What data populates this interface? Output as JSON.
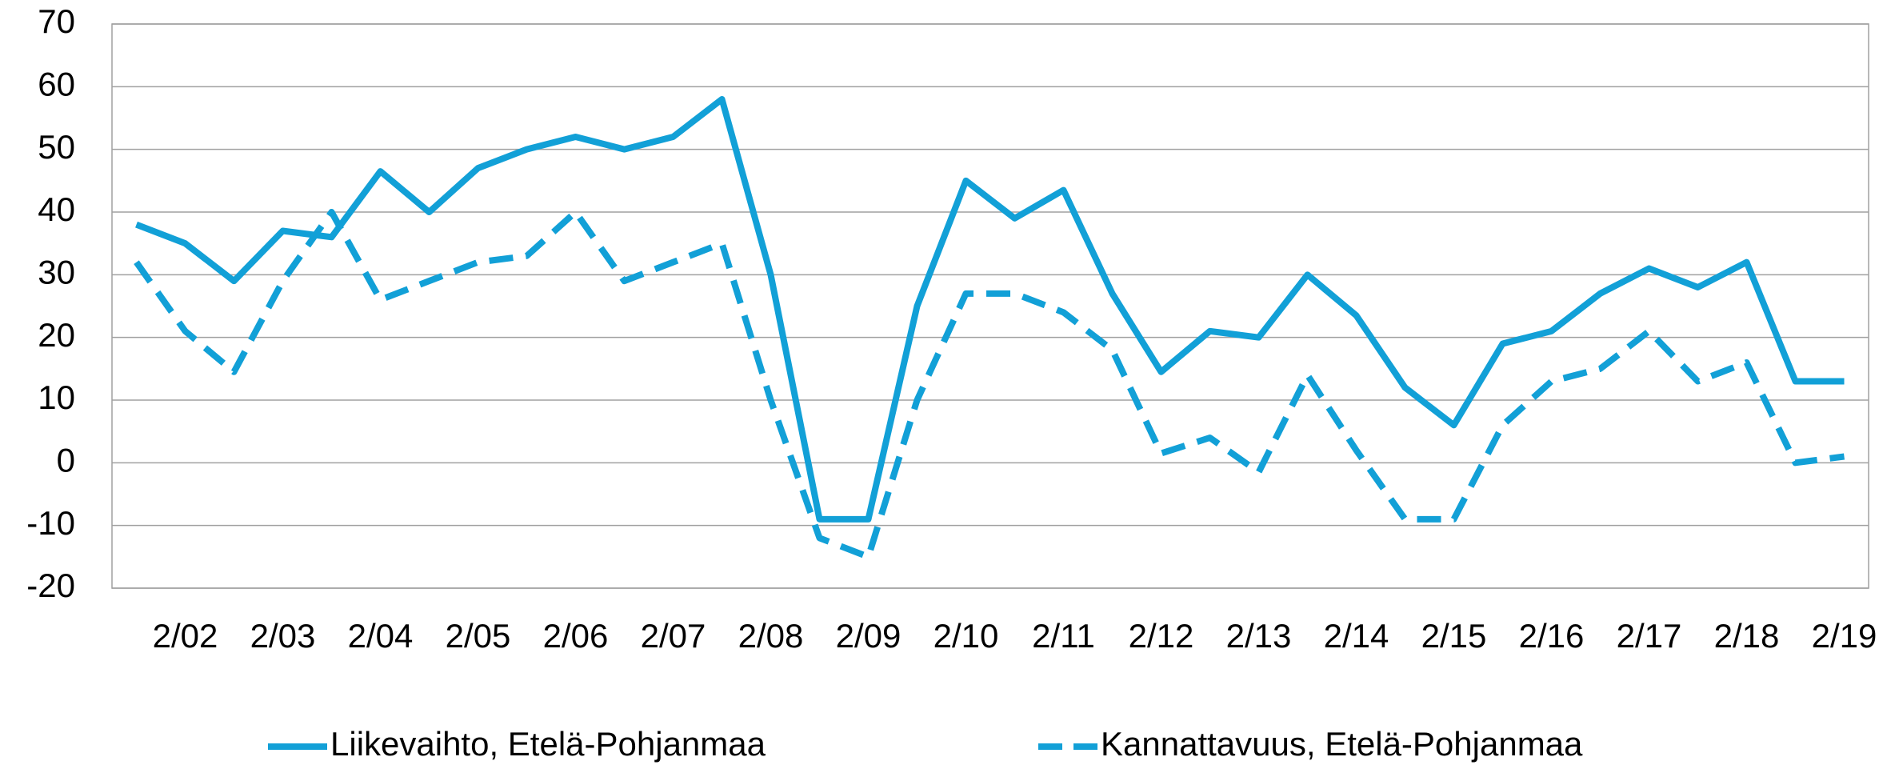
{
  "chart_data": {
    "type": "line",
    "categories": [
      null,
      "2/02",
      null,
      "2/03",
      null,
      "2/04",
      null,
      "2/05",
      null,
      "2/06",
      null,
      "2/07",
      null,
      "2/08",
      null,
      "2/09",
      null,
      "2/10",
      null,
      "2/11",
      null,
      "2/12",
      null,
      "2/13",
      null,
      "2/14",
      null,
      "2/15",
      null,
      "2/16",
      null,
      "2/17",
      null,
      "2/18",
      null,
      "2/19"
    ],
    "series": [
      {
        "name": "Liikevaihto, Etelä-Pohjanmaa",
        "color": "#12a0d7",
        "line_style": "solid",
        "values": [
          38,
          35,
          29,
          37,
          36,
          46.5,
          40,
          47,
          50,
          52,
          50,
          52,
          58,
          30,
          -9,
          -9,
          25,
          45,
          39,
          43.5,
          27,
          14.5,
          21,
          20,
          30,
          23.5,
          12,
          6,
          19,
          21,
          27,
          31,
          28,
          32,
          13,
          13
        ]
      },
      {
        "name": "Kannattavuus, Etelä-Pohjanmaa",
        "color": "#12a0d7",
        "line_style": "dashed",
        "values": [
          32,
          21,
          14.5,
          29,
          40,
          26,
          29,
          32,
          33,
          40,
          29,
          32,
          35,
          10,
          -12,
          -15,
          10,
          27,
          27,
          24,
          18,
          1.5,
          4,
          -1.5,
          14,
          2,
          -9,
          -9,
          6,
          13,
          15,
          21,
          13,
          16,
          0,
          1
        ]
      }
    ],
    "ylim": [
      -20,
      70
    ],
    "yticks": [
      -20,
      -10,
      0,
      10,
      20,
      30,
      40,
      50,
      60,
      70
    ],
    "grid": true,
    "legend": "bottom"
  }
}
